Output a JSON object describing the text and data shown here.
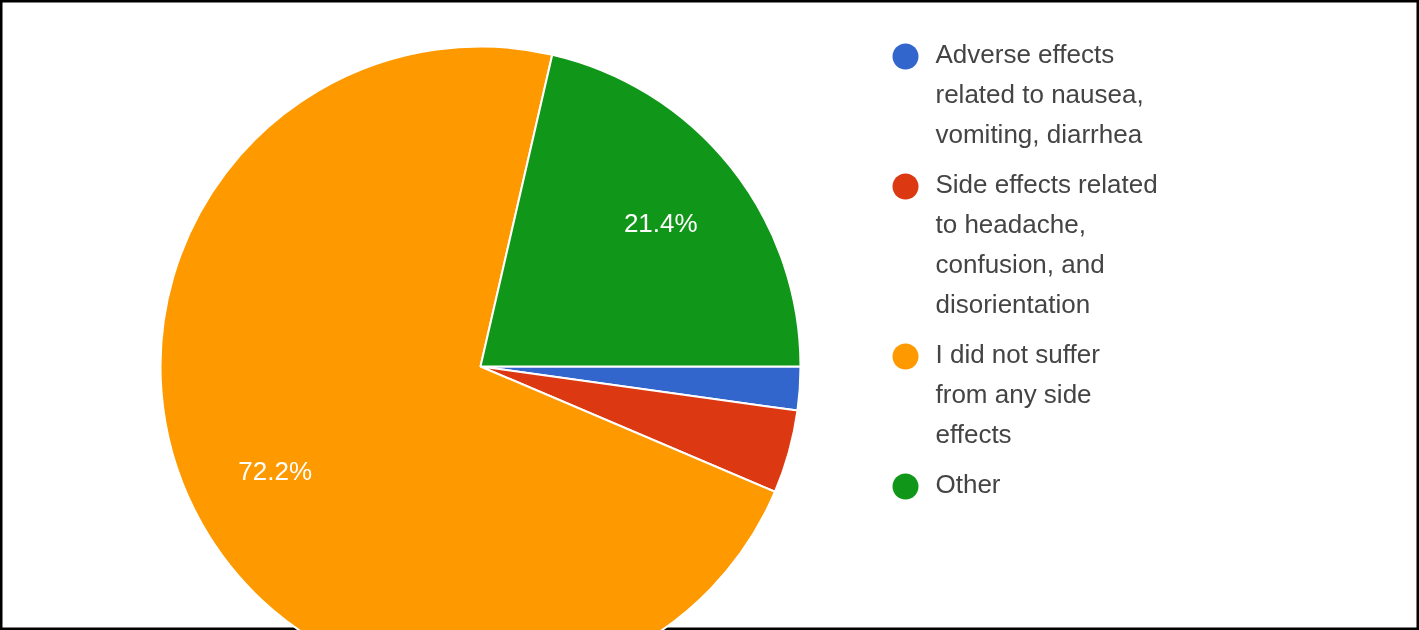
{
  "chart_data": {
    "type": "pie",
    "categories": [
      "Adverse effects related to nausea, vomiting, diarrhea",
      "Side effects related to headache, confusion, and disorientation",
      "I did not suffer from any side effects",
      "Other"
    ],
    "values": [
      2.2,
      4.2,
      72.2,
      21.4
    ],
    "colors": [
      "#3366cc",
      "#dc3912",
      "#ff9900",
      "#109618"
    ],
    "value_labels": [
      null,
      null,
      "72.2%",
      "21.4%"
    ],
    "legend": "right"
  }
}
